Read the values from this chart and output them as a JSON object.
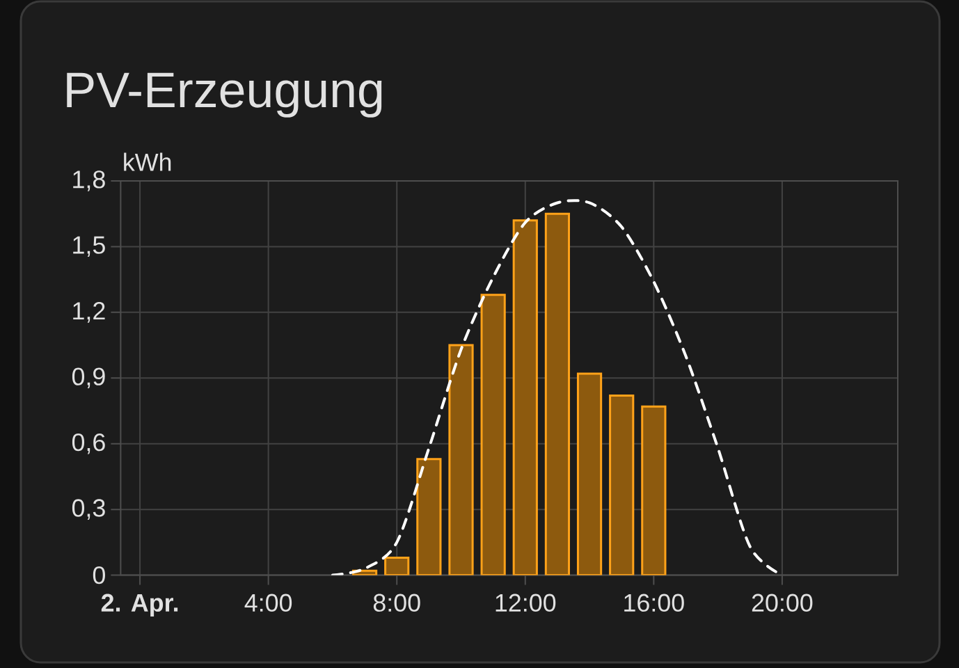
{
  "chart_data": {
    "type": "bar",
    "title": "PV-Erzeugung",
    "ylabel": "kWh",
    "x": [
      7,
      8,
      9,
      10,
      11,
      12,
      13,
      14,
      15,
      16
    ],
    "series": [
      {
        "color": "#8d5a0e",
        "values": [
          0.02,
          0.08,
          0.53,
          1.05,
          1.28,
          1.62,
          1.65,
          0.92,
          0.82,
          0.77
        ]
      },
      {
        "type": "line",
        "color": "#ffffff",
        "line_style": "dashed",
        "x": [
          6,
          7,
          8,
          9,
          10,
          11,
          12,
          13,
          14,
          15,
          16,
          17,
          18,
          19,
          20
        ],
        "values": [
          0,
          0.03,
          0.15,
          0.58,
          1.03,
          1.36,
          1.61,
          1.7,
          1.7,
          1.59,
          1.34,
          1.0,
          0.58,
          0.13,
          0
        ]
      }
    ],
    "xlim": [
      -0.6,
      23.6
    ],
    "xticks": [
      {
        "value": 0,
        "label": "**2. Apr.**"
      },
      {
        "value": 4,
        "label": "4:00"
      },
      {
        "value": 8,
        "label": "8:00"
      },
      {
        "value": 12,
        "label": "12:00"
      },
      {
        "value": 16,
        "label": "16:00"
      },
      {
        "value": 20,
        "label": "20:00"
      }
    ],
    "ylim": [
      0,
      1.8
    ],
    "yticks": [
      0,
      {
        "value": 0.3,
        "label": "0,3"
      },
      {
        "value": 0.6,
        "label": "0,6"
      },
      {
        "value": 0.9,
        "label": "0,9"
      },
      {
        "value": 1.2,
        "label": "1,2"
      },
      {
        "value": 1.5,
        "label": "1,5"
      },
      {
        "value": 1.8,
        "label": "1,8"
      }
    ],
    "grid": true
  }
}
